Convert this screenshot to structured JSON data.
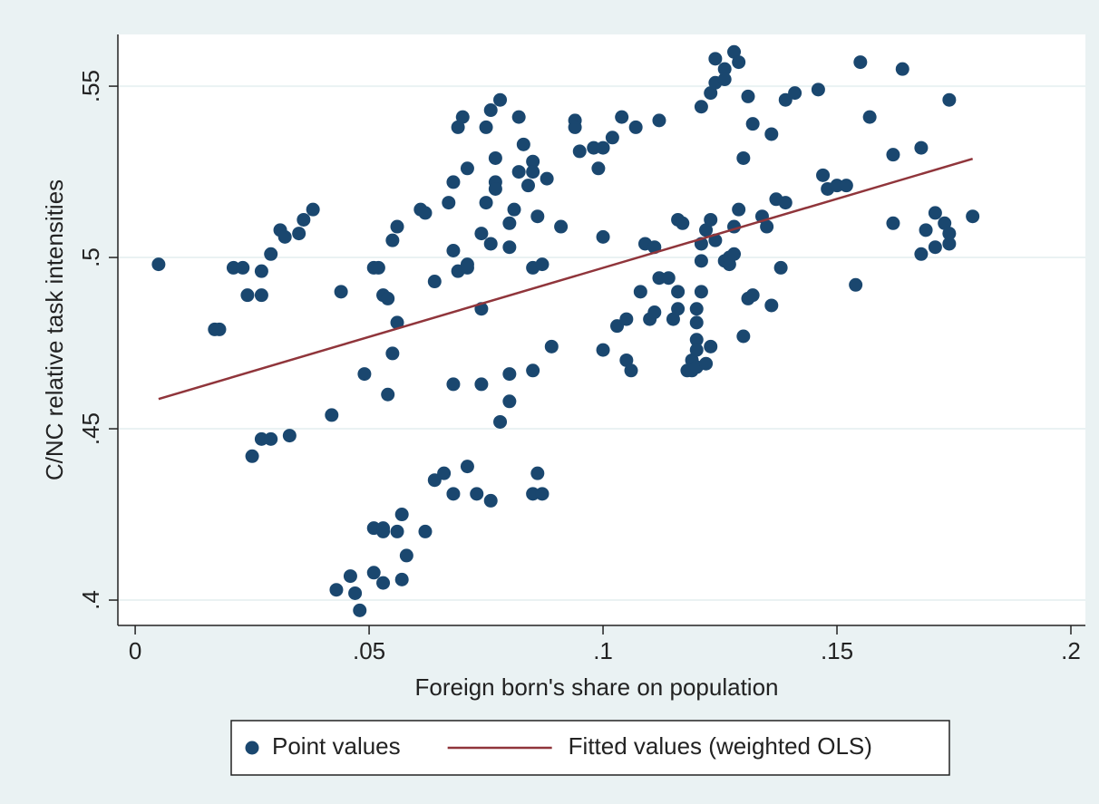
{
  "chart_data": {
    "type": "scatter",
    "x_label": "Foreign born's share on population",
    "y_label": "C/NC relative task intensities",
    "xlim": [
      -0.0037,
      0.2031
    ],
    "ylim": [
      0.3926,
      0.5651
    ],
    "xticks": [
      0,
      {
        "value": 0.05,
        "label": ".05"
      },
      {
        "value": 0.1,
        "label": ".1"
      },
      {
        "value": 0.15,
        "label": ".15"
      },
      {
        "value": 0.2,
        "label": ".2"
      }
    ],
    "yticks": [
      {
        "value": 0.4,
        "label": ".4"
      },
      {
        "value": 0.45,
        "label": ".45"
      },
      {
        "value": 0.5,
        "label": ".5"
      },
      {
        "value": 0.55,
        "label": ".55"
      }
    ],
    "grid": true,
    "legend": "bottom",
    "series": [
      {
        "name": "Point values",
        "color": "#1a476f",
        "type": "scatter",
        "x": [
          0.005,
          0.017,
          0.018,
          0.021,
          0.023,
          0.024,
          0.027,
          0.027,
          0.029,
          0.031,
          0.032,
          0.035,
          0.036,
          0.038,
          0.027,
          0.029,
          0.025,
          0.033,
          0.042,
          0.044,
          0.043,
          0.046,
          0.047,
          0.048,
          0.049,
          0.051,
          0.052,
          0.051,
          0.051,
          0.053,
          0.053,
          0.053,
          0.053,
          0.054,
          0.054,
          0.055,
          0.055,
          0.056,
          0.056,
          0.056,
          0.057,
          0.058,
          0.057,
          0.061,
          0.062,
          0.062,
          0.064,
          0.064,
          0.066,
          0.067,
          0.068,
          0.068,
          0.068,
          0.068,
          0.069,
          0.071,
          0.071,
          0.069,
          0.07,
          0.071,
          0.071,
          0.073,
          0.074,
          0.074,
          0.074,
          0.075,
          0.075,
          0.076,
          0.076,
          0.076,
          0.077,
          0.077,
          0.077,
          0.078,
          0.078,
          0.08,
          0.08,
          0.08,
          0.08,
          0.081,
          0.082,
          0.082,
          0.083,
          0.084,
          0.085,
          0.085,
          0.085,
          0.087,
          0.085,
          0.085,
          0.086,
          0.086,
          0.087,
          0.088,
          0.089,
          0.091,
          0.094,
          0.094,
          0.095,
          0.098,
          0.099,
          0.1,
          0.1,
          0.1,
          0.102,
          0.104,
          0.103,
          0.105,
          0.105,
          0.106,
          0.107,
          0.108,
          0.109,
          0.11,
          0.111,
          0.111,
          0.112,
          0.112,
          0.114,
          0.115,
          0.116,
          0.116,
          0.116,
          0.117,
          0.118,
          0.119,
          0.119,
          0.12,
          0.12,
          0.12,
          0.12,
          0.12,
          0.121,
          0.121,
          0.121,
          0.121,
          0.122,
          0.122,
          0.123,
          0.123,
          0.123,
          0.124,
          0.124,
          0.124,
          0.126,
          0.126,
          0.126,
          0.127,
          0.127,
          0.128,
          0.128,
          0.129,
          0.128,
          0.129,
          0.13,
          0.13,
          0.131,
          0.132,
          0.131,
          0.132,
          0.134,
          0.135,
          0.136,
          0.136,
          0.137,
          0.138,
          0.139,
          0.139,
          0.141,
          0.146,
          0.147,
          0.148,
          0.15,
          0.152,
          0.154,
          0.155,
          0.157,
          0.162,
          0.162,
          0.164,
          0.168,
          0.168,
          0.169,
          0.171,
          0.171,
          0.173,
          0.174,
          0.174,
          0.174,
          0.179
        ],
        "values": [
          0.498,
          0.479,
          0.479,
          0.497,
          0.497,
          0.489,
          0.489,
          0.496,
          0.501,
          0.508,
          0.506,
          0.507,
          0.511,
          0.514,
          0.447,
          0.447,
          0.442,
          0.448,
          0.454,
          0.49,
          0.403,
          0.407,
          0.402,
          0.397,
          0.466,
          0.497,
          0.497,
          0.408,
          0.421,
          0.421,
          0.42,
          0.405,
          0.489,
          0.488,
          0.46,
          0.472,
          0.505,
          0.481,
          0.509,
          0.42,
          0.425,
          0.413,
          0.406,
          0.514,
          0.513,
          0.42,
          0.493,
          0.435,
          0.437,
          0.516,
          0.522,
          0.502,
          0.463,
          0.431,
          0.496,
          0.497,
          0.498,
          0.538,
          0.541,
          0.439,
          0.526,
          0.431,
          0.507,
          0.463,
          0.485,
          0.516,
          0.538,
          0.543,
          0.504,
          0.429,
          0.529,
          0.522,
          0.52,
          0.452,
          0.546,
          0.503,
          0.51,
          0.458,
          0.466,
          0.514,
          0.541,
          0.525,
          0.533,
          0.521,
          0.467,
          0.497,
          0.431,
          0.431,
          0.528,
          0.525,
          0.512,
          0.437,
          0.498,
          0.523,
          0.474,
          0.509,
          0.54,
          0.538,
          0.531,
          0.532,
          0.526,
          0.532,
          0.506,
          0.473,
          0.535,
          0.541,
          0.48,
          0.482,
          0.47,
          0.467,
          0.538,
          0.49,
          0.504,
          0.482,
          0.484,
          0.503,
          0.494,
          0.54,
          0.494,
          0.482,
          0.49,
          0.485,
          0.511,
          0.51,
          0.467,
          0.467,
          0.47,
          0.468,
          0.476,
          0.485,
          0.481,
          0.473,
          0.544,
          0.49,
          0.499,
          0.504,
          0.508,
          0.469,
          0.474,
          0.511,
          0.548,
          0.558,
          0.505,
          0.551,
          0.555,
          0.499,
          0.552,
          0.498,
          0.5,
          0.56,
          0.501,
          0.557,
          0.509,
          0.514,
          0.477,
          0.529,
          0.488,
          0.489,
          0.547,
          0.539,
          0.512,
          0.509,
          0.536,
          0.486,
          0.517,
          0.497,
          0.516,
          0.546,
          0.548,
          0.549,
          0.524,
          0.52,
          0.521,
          0.521,
          0.492,
          0.557,
          0.541,
          0.53,
          0.51,
          0.555,
          0.532,
          0.501,
          0.508,
          0.503,
          0.513,
          0.51,
          0.546,
          0.504,
          0.507,
          0.512
        ]
      },
      {
        "name": "Fitted values (weighted OLS)",
        "color": "#90353b",
        "type": "line",
        "x": [
          0.005,
          0.179
        ],
        "values": [
          0.4587,
          0.5288
        ]
      }
    ]
  }
}
